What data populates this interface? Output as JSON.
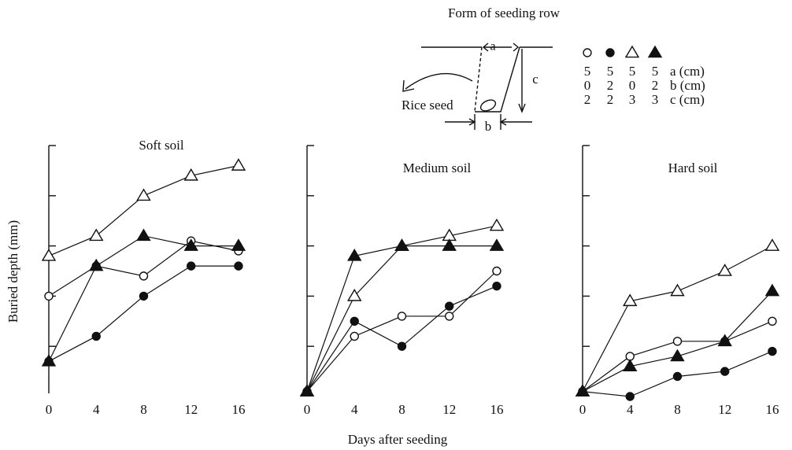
{
  "diagram": {
    "title": "Form of seeding row",
    "seed_label": "Rice seed",
    "a": "a",
    "b": "b",
    "c": "c"
  },
  "legend": {
    "rows": [
      {
        "values": [
          5,
          5,
          5,
          5
        ],
        "label": "a (cm)"
      },
      {
        "values": [
          0,
          2,
          0,
          2
        ],
        "label": "b (cm)"
      },
      {
        "values": [
          2,
          2,
          3,
          3
        ],
        "label": "c (cm)"
      }
    ]
  },
  "xlabel": "Days after seeding",
  "ylabel": "Buried depth (mm)",
  "chart_data": [
    {
      "type": "line",
      "title": "Soft soil",
      "x": [
        0,
        4,
        8,
        12,
        16
      ],
      "xlim": [
        0,
        17
      ],
      "xticks": [
        0,
        4,
        8,
        12,
        16
      ],
      "ylim": [
        0,
        5
      ],
      "yticks": [
        1,
        2,
        3,
        4,
        5
      ],
      "series": [
        {
          "marker": "circle",
          "filled": false,
          "color": "#111111",
          "values": [
            2.0,
            2.6,
            2.4,
            3.1,
            2.9
          ]
        },
        {
          "marker": "circle",
          "filled": true,
          "color": "#111111",
          "values": [
            0.7,
            1.2,
            2.0,
            2.6,
            2.6
          ]
        },
        {
          "marker": "triangle",
          "filled": false,
          "color": "#111111",
          "values": [
            2.8,
            3.2,
            4.0,
            4.4,
            4.6
          ]
        },
        {
          "marker": "triangle",
          "filled": true,
          "color": "#111111",
          "values": [
            0.7,
            2.6,
            3.2,
            3.0,
            3.0
          ]
        }
      ]
    },
    {
      "type": "line",
      "title": "Medium soil",
      "x": [
        0,
        4,
        8,
        12,
        16
      ],
      "xlim": [
        0,
        17
      ],
      "xticks": [
        0,
        4,
        8,
        12,
        16
      ],
      "ylim": [
        0,
        5
      ],
      "yticks": [
        1,
        2,
        3,
        4,
        5
      ],
      "series": [
        {
          "marker": "circle",
          "filled": false,
          "color": "#111111",
          "values": [
            0.1,
            1.2,
            1.6,
            1.6,
            2.5
          ]
        },
        {
          "marker": "circle",
          "filled": true,
          "color": "#111111",
          "values": [
            0.1,
            1.5,
            1.0,
            1.8,
            2.2
          ]
        },
        {
          "marker": "triangle",
          "filled": false,
          "color": "#111111",
          "values": [
            0.1,
            2.0,
            3.0,
            3.2,
            3.4
          ]
        },
        {
          "marker": "triangle",
          "filled": true,
          "color": "#111111",
          "values": [
            0.1,
            2.8,
            3.0,
            3.0,
            3.0
          ]
        }
      ]
    },
    {
      "type": "line",
      "title": "Hard soil",
      "x": [
        0,
        4,
        8,
        12,
        16
      ],
      "xlim": [
        0,
        17
      ],
      "xticks": [
        0,
        4,
        8,
        12,
        16
      ],
      "ylim": [
        0,
        5
      ],
      "yticks": [
        1,
        2,
        3,
        4,
        5
      ],
      "series": [
        {
          "marker": "circle",
          "filled": false,
          "color": "#111111",
          "values": [
            0.1,
            0.8,
            1.1,
            1.1,
            1.5
          ]
        },
        {
          "marker": "circle",
          "filled": true,
          "color": "#111111",
          "values": [
            0.1,
            0.0,
            0.4,
            0.5,
            0.9
          ]
        },
        {
          "marker": "triangle",
          "filled": false,
          "color": "#111111",
          "values": [
            0.1,
            1.9,
            2.1,
            2.5,
            3.0
          ]
        },
        {
          "marker": "triangle",
          "filled": true,
          "color": "#111111",
          "values": [
            0.1,
            0.6,
            0.8,
            1.1,
            2.1
          ]
        }
      ]
    }
  ]
}
